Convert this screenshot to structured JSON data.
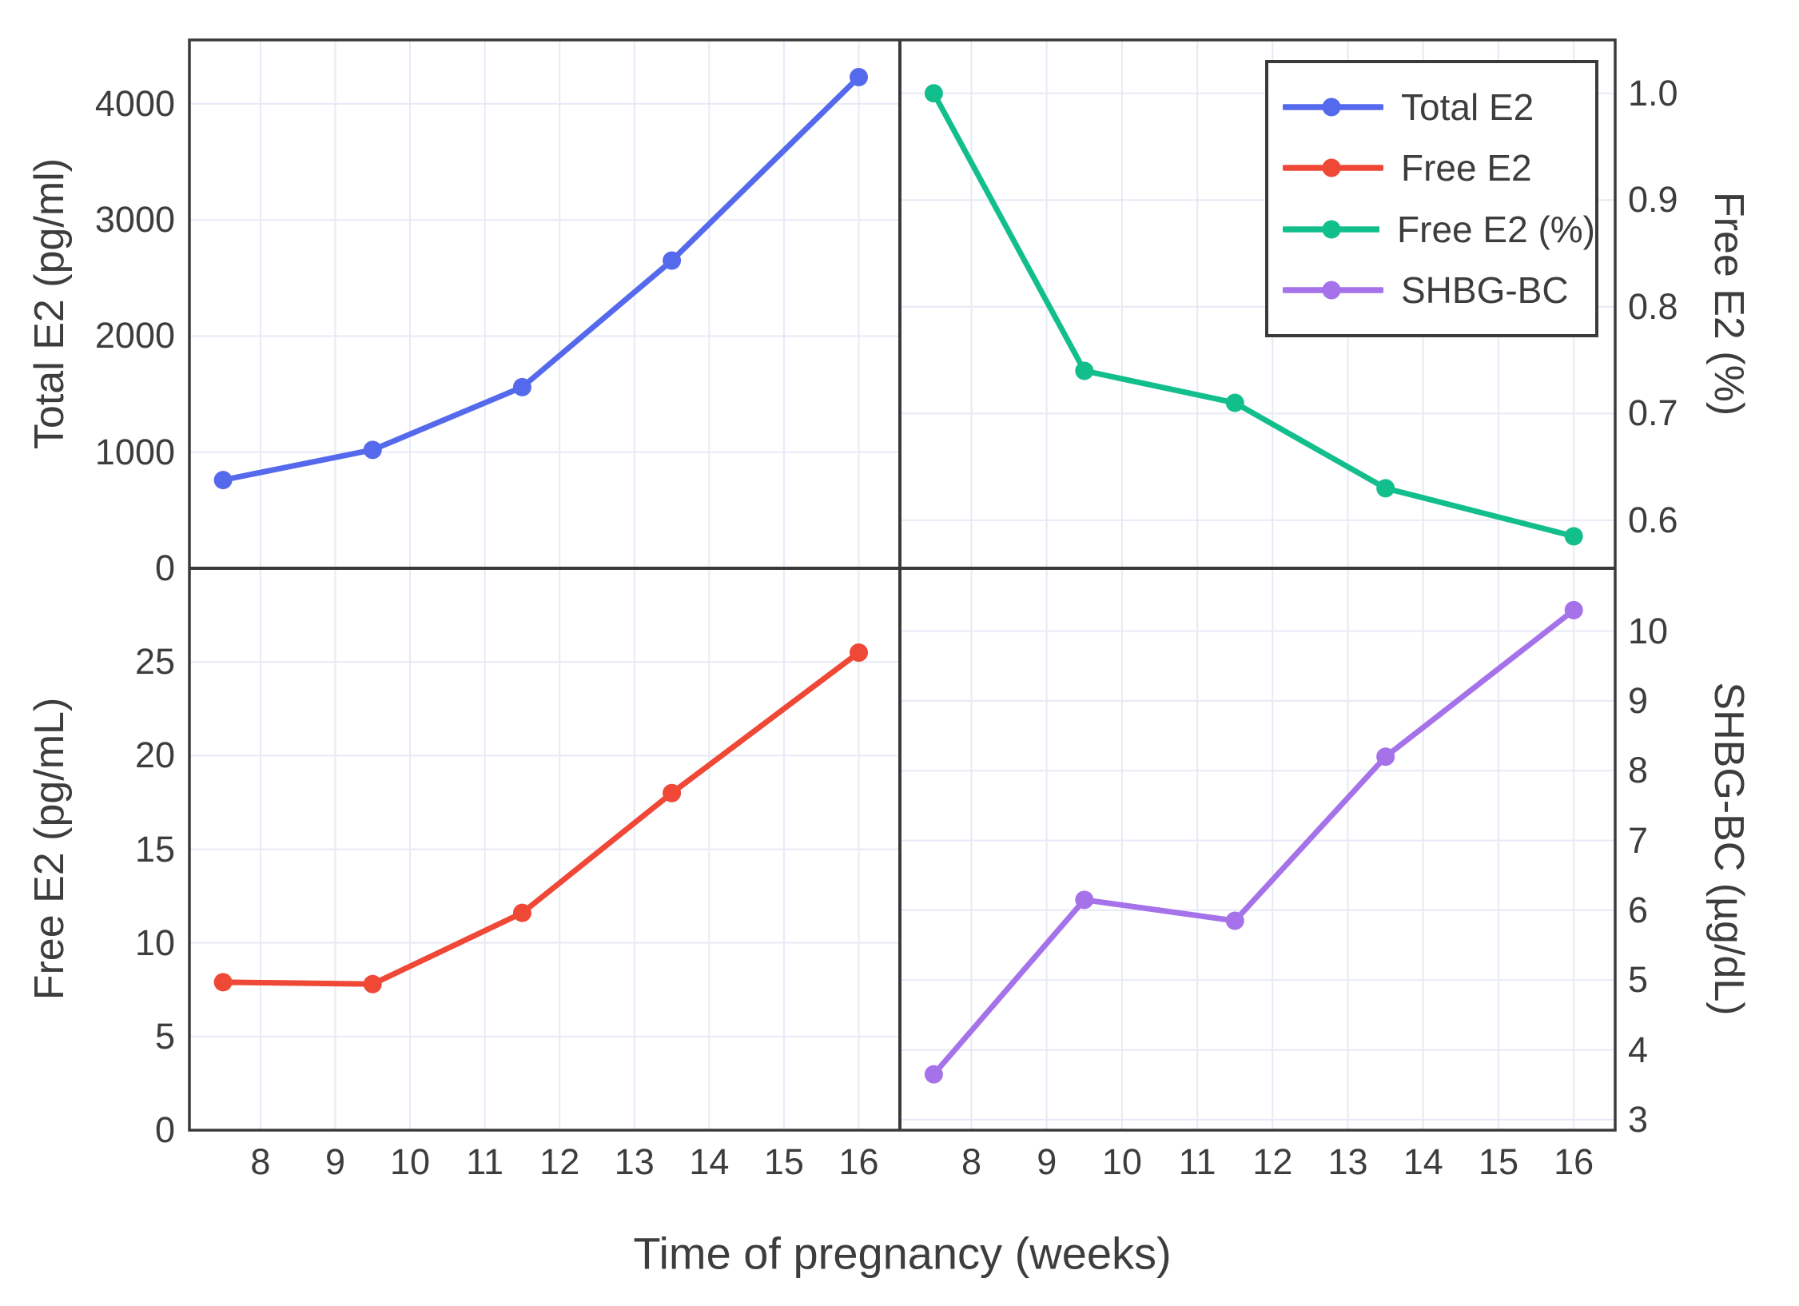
{
  "figure": {
    "xlabel": "Time of pregnancy (weeks)",
    "x_ticks": [
      8,
      9,
      10,
      11,
      12,
      13,
      14,
      15,
      16
    ],
    "x_tick_labels": [
      "8",
      "9",
      "10",
      "11",
      "12",
      "13",
      "14",
      "15",
      "16"
    ],
    "xlim": [
      7.05,
      16.55
    ],
    "background_color": "#ffffff",
    "border_color": "#3a3a3a",
    "grid_color": "#e7eaf6",
    "text_color": "#3d3d3d",
    "grid": true
  },
  "chart_data": [
    {
      "type": "line",
      "panel": "top-left",
      "ylabel": "Total E2 (pg/ml)",
      "yaxis_side": "left",
      "yticks": [
        0,
        1000,
        2000,
        3000,
        4000
      ],
      "ytick_labels": [
        "0",
        "1000",
        "2000",
        "3000",
        "4000"
      ],
      "ylim": [
        0,
        4550
      ],
      "series": [
        {
          "name": "Total E2",
          "color": "#5569ed",
          "x": [
            7.5,
            9.5,
            11.5,
            13.5,
            16
          ],
          "values": [
            760,
            1020,
            1560,
            2650,
            4230
          ]
        }
      ]
    },
    {
      "type": "line",
      "panel": "top-right",
      "ylabel": "Free E2 (%)",
      "yaxis_side": "right",
      "yticks": [
        0.6,
        0.7,
        0.8,
        0.9,
        1.0
      ],
      "ytick_labels": [
        "0.6",
        "0.7",
        "0.8",
        "0.9",
        "1.0"
      ],
      "ylim": [
        0.555,
        1.05
      ],
      "series": [
        {
          "name": "Free E2 (%)",
          "color": "#12bf8c",
          "x": [
            7.5,
            9.5,
            11.5,
            13.5,
            16
          ],
          "values": [
            1.0,
            0.74,
            0.71,
            0.63,
            0.585
          ]
        }
      ]
    },
    {
      "type": "line",
      "panel": "bottom-left",
      "ylabel": "Free E2 (pg/mL)",
      "yaxis_side": "left",
      "yticks": [
        0,
        5,
        10,
        15,
        20,
        25
      ],
      "ytick_labels": [
        "0",
        "5",
        "10",
        "15",
        "20",
        "25"
      ],
      "ylim": [
        0,
        30
      ],
      "series": [
        {
          "name": "Free E2",
          "color": "#ef4836",
          "x": [
            7.5,
            9.5,
            11.5,
            13.5,
            16
          ],
          "values": [
            7.9,
            7.8,
            11.6,
            18.0,
            25.5
          ]
        }
      ]
    },
    {
      "type": "line",
      "panel": "bottom-right",
      "ylabel": "SHBG-BC (µg/dL)",
      "yaxis_side": "right",
      "yticks": [
        3,
        4,
        5,
        6,
        7,
        8,
        9,
        10
      ],
      "ytick_labels": [
        "3",
        "4",
        "5",
        "6",
        "7",
        "8",
        "9",
        "10"
      ],
      "ylim": [
        2.85,
        10.9
      ],
      "series": [
        {
          "name": "SHBG-BC",
          "color": "#a572e9",
          "x": [
            7.5,
            9.5,
            11.5,
            13.5,
            16
          ],
          "values": [
            3.65,
            6.15,
            5.85,
            8.2,
            10.3
          ]
        }
      ]
    }
  ],
  "legend": {
    "position": "top-right-panel",
    "items": [
      {
        "label": "Total E2",
        "color": "#5569ed"
      },
      {
        "label": "Free E2",
        "color": "#ef4836"
      },
      {
        "label": "Free E2 (%)",
        "color": "#12bf8c"
      },
      {
        "label": "SHBG-BC",
        "color": "#a572e9"
      }
    ]
  }
}
